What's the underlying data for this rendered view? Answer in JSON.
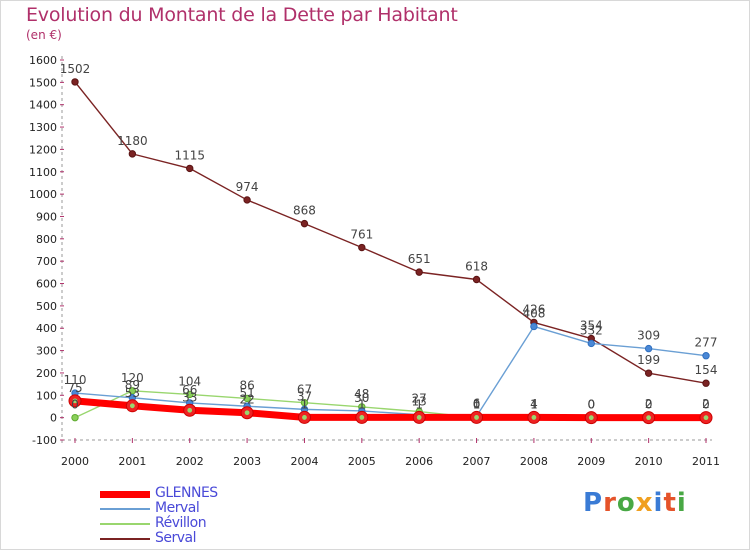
{
  "title": "Evolution du Montant de la Dette par Habitant",
  "subtitle": "(en €)",
  "logo_text": "Proxiti",
  "logo_colors": [
    "#3a7bd5",
    "#e5532a",
    "#48a844",
    "#f0a020",
    "#3a7bd5",
    "#e5532a",
    "#48a844"
  ],
  "chart_data": {
    "type": "line",
    "title": "Evolution du Montant de la Dette par Habitant",
    "ylabel": "(en €)",
    "xlabel": "",
    "x": [
      "2000",
      "2001",
      "2002",
      "2003",
      "2004",
      "2005",
      "2006",
      "2007",
      "2008",
      "2009",
      "2010",
      "2011"
    ],
    "ylim": [
      -100,
      1600
    ],
    "yticks": [
      "-100",
      "0",
      "100",
      "200",
      "300",
      "400",
      "500",
      "600",
      "700",
      "800",
      "900",
      "1000",
      "1100",
      "1200",
      "1300",
      "1400",
      "1500",
      "1600"
    ],
    "grid": false,
    "legend_position": "bottom-left",
    "series": [
      {
        "name": "GLENNES",
        "color": "#ff0000",
        "values": [
          75,
          53,
          33,
          22,
          1,
          1,
          1,
          1,
          1,
          0,
          0,
          0
        ],
        "labels": [
          "75",
          "53",
          "33",
          "22",
          "1",
          "1",
          "1",
          "1",
          "1",
          "0",
          "0",
          "0"
        ]
      },
      {
        "name": "Merval",
        "color": "#6a9fd4",
        "values": [
          110,
          89,
          66,
          51,
          37,
          30,
          13,
          6,
          408,
          332,
          309,
          277
        ],
        "labels": [
          "110",
          "89",
          "66",
          "51",
          "37",
          "30",
          "13",
          "6",
          "408",
          "332",
          "309",
          "277"
        ]
      },
      {
        "name": "Révillon",
        "color": "#99d66e",
        "values": [
          0,
          120,
          104,
          86,
          67,
          48,
          27,
          0,
          4,
          0,
          2,
          2
        ],
        "labels": [
          "0",
          "120",
          "104",
          "86",
          "67",
          "48",
          "27",
          "0",
          "4",
          "0",
          "2",
          "2"
        ]
      },
      {
        "name": "Serval",
        "color": "#7b2323",
        "values": [
          1502,
          1180,
          1115,
          974,
          868,
          761,
          651,
          618,
          426,
          354,
          199,
          154
        ],
        "labels": [
          "1502",
          "1180",
          "1115",
          "974",
          "868",
          "761",
          "651",
          "618",
          "426",
          "354",
          "199",
          "154"
        ]
      }
    ]
  }
}
